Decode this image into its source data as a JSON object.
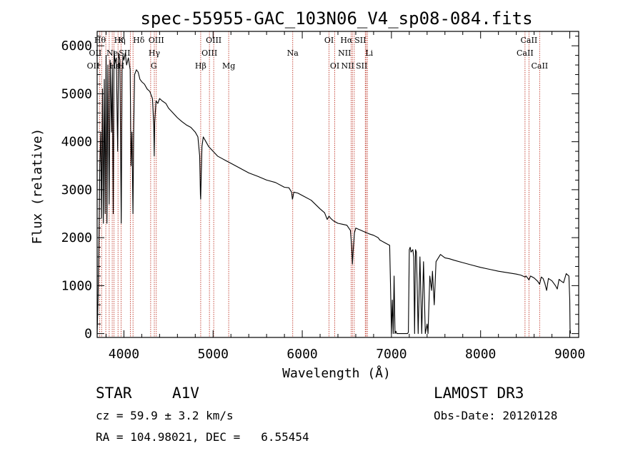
{
  "chart_data": {
    "type": "line",
    "title": "spec-55955-GAC_103N06_V4_sp08-084.fits",
    "xlabel": "Wavelength (Å)",
    "ylabel": "Flux (relative)",
    "xlim": [
      3700,
      9100
    ],
    "ylim": [
      -80,
      6300
    ],
    "x_ticks": [
      4000,
      5000,
      6000,
      7000,
      8000,
      9000
    ],
    "y_ticks": [
      0,
      1000,
      2000,
      3000,
      4000,
      5000,
      6000
    ],
    "grid": false,
    "series": [
      {
        "name": "flux",
        "x": [
          3700,
          3710,
          3720,
          3730,
          3740,
          3750,
          3760,
          3770,
          3780,
          3790,
          3800,
          3810,
          3820,
          3835,
          3845,
          3860,
          3870,
          3880,
          3889,
          3900,
          3915,
          3930,
          3940,
          3955,
          3970,
          3980,
          3990,
          4000,
          4015,
          4030,
          4050,
          4070,
          4080,
          4090,
          4101,
          4110,
          4120,
          4140,
          4160,
          4180,
          4200,
          4230,
          4260,
          4290,
          4320,
          4335,
          4340,
          4345,
          4360,
          4380,
          4400,
          4430,
          4470,
          4500,
          4550,
          4600,
          4650,
          4700,
          4750,
          4800,
          4830,
          4850,
          4858,
          4861,
          4866,
          4875,
          4890,
          4920,
          4950,
          5000,
          5050,
          5100,
          5150,
          5200,
          5300,
          5400,
          5500,
          5600,
          5700,
          5800,
          5850,
          5880,
          5890,
          5896,
          5905,
          5950,
          6000,
          6100,
          6200,
          6250,
          6280,
          6300,
          6320,
          6350,
          6400,
          6450,
          6500,
          6540,
          6555,
          6563,
          6570,
          6585,
          6600,
          6650,
          6700,
          6750,
          6800,
          6850,
          6870,
          6890,
          6920,
          6950,
          6980,
          6990,
          7000,
          7010,
          7020,
          7030,
          7040,
          7050,
          7060,
          7100,
          7150,
          7180,
          7190,
          7200,
          7210,
          7220,
          7240,
          7250,
          7260,
          7270,
          7280,
          7290,
          7300,
          7320,
          7340,
          7360,
          7380,
          7400,
          7410,
          7430,
          7450,
          7460,
          7480,
          7500,
          7550,
          7600,
          7650,
          7700,
          7800,
          7900,
          8000,
          8100,
          8200,
          8300,
          8400,
          8450,
          8498,
          8510,
          8542,
          8560,
          8600,
          8640,
          8662,
          8680,
          8700,
          8720,
          8740,
          8760,
          8800,
          8840,
          8860,
          8880,
          8900,
          8930,
          8960,
          8990,
          9000,
          9003,
          9008
        ],
        "values": [
          0,
          700,
          1900,
          3500,
          4200,
          2400,
          5100,
          2300,
          5300,
          2500,
          5800,
          2300,
          5600,
          2700,
          5700,
          4200,
          5600,
          2500,
          5900,
          5650,
          5750,
          3800,
          5850,
          5700,
          2300,
          5500,
          5800,
          5700,
          5850,
          5600,
          5750,
          5500,
          3500,
          4200,
          2500,
          4300,
          5400,
          5500,
          5450,
          5300,
          5250,
          5200,
          5100,
          5050,
          4900,
          4300,
          3700,
          4400,
          4850,
          4800,
          4900,
          4850,
          4800,
          4700,
          4600,
          4500,
          4420,
          4350,
          4300,
          4200,
          4100,
          3700,
          2900,
          2800,
          3200,
          3900,
          4100,
          4000,
          3900,
          3800,
          3700,
          3650,
          3600,
          3550,
          3450,
          3350,
          3280,
          3200,
          3150,
          3050,
          3040,
          2950,
          2800,
          2850,
          2950,
          2930,
          2880,
          2780,
          2600,
          2520,
          2380,
          2450,
          2400,
          2350,
          2300,
          2280,
          2260,
          2150,
          1800,
          1450,
          1700,
          2100,
          2200,
          2160,
          2120,
          2080,
          2050,
          2000,
          1950,
          1930,
          1900,
          1870,
          1840,
          1000,
          0,
          700,
          0,
          1200,
          0,
          50,
          0,
          0,
          0,
          0,
          30,
          1750,
          1800,
          1700,
          1750,
          1600,
          0,
          1750,
          1700,
          900,
          0,
          1600,
          0,
          1500,
          0,
          200,
          0,
          1200,
          900,
          1300,
          600,
          1500,
          1650,
          1580,
          1560,
          1530,
          1480,
          1430,
          1380,
          1340,
          1300,
          1270,
          1240,
          1220,
          1180,
          1200,
          1120,
          1200,
          1160,
          1090,
          1030,
          1180,
          1150,
          1050,
          900,
          1150,
          1100,
          1000,
          930,
          1130,
          1100,
          1060,
          1250,
          1200,
          700,
          100,
          0
        ]
      }
    ],
    "lines": [
      {
        "wave": 3727,
        "label": "OII",
        "row": 2,
        "anchor": "end"
      },
      {
        "wave": 3750,
        "label": "OII",
        "row": 1,
        "anchor": "end"
      },
      {
        "wave": 3797,
        "label": "Hθ",
        "row": 0,
        "anchor": "end"
      },
      {
        "wave": 3835,
        "label": "Hε",
        "row": 2,
        "anchor": "start"
      },
      {
        "wave": 3869,
        "label": "Ne",
        "row": 1,
        "anchor": "middle"
      },
      {
        "wave": 3889,
        "label": "Hη",
        "row": 0,
        "anchor": "start"
      },
      {
        "wave": 3934,
        "label": "K",
        "row": 0,
        "anchor": "start"
      },
      {
        "wave": 3968,
        "label": "H",
        "row": 2,
        "anchor": "middle"
      },
      {
        "wave": 4072,
        "label": "SII",
        "row": 1,
        "anchor": "end"
      },
      {
        "wave": 4102,
        "label": "Hδ",
        "row": 0,
        "anchor": "start"
      },
      {
        "wave": 4300,
        "label": "G",
        "row": 2,
        "anchor": "start"
      },
      {
        "wave": 4341,
        "label": "Hγ",
        "row": 1,
        "anchor": "middle"
      },
      {
        "wave": 4363,
        "label": "OIII",
        "row": 0,
        "anchor": "middle"
      },
      {
        "wave": 4861,
        "label": "Hβ",
        "row": 2,
        "anchor": "middle"
      },
      {
        "wave": 4959,
        "label": "OIII",
        "row": 1,
        "anchor": "middle"
      },
      {
        "wave": 5007,
        "label": "OIII",
        "row": 0,
        "anchor": "middle"
      },
      {
        "wave": 5175,
        "label": "Mg",
        "row": 2,
        "anchor": "middle"
      },
      {
        "wave": 5893,
        "label": "Na",
        "row": 1,
        "anchor": "middle"
      },
      {
        "wave": 6300,
        "label": "OI",
        "row": 0,
        "anchor": "middle"
      },
      {
        "wave": 6364,
        "label": "OI",
        "row": 2,
        "anchor": "middle"
      },
      {
        "wave": 6548,
        "label": "NII",
        "row": 1,
        "anchor": "end"
      },
      {
        "wave": 6563,
        "label": "Hα",
        "row": 0,
        "anchor": "end"
      },
      {
        "wave": 6583,
        "label": "NII",
        "row": 2,
        "anchor": "end"
      },
      {
        "wave": 6707,
        "label": "Li",
        "row": 1,
        "anchor": "start"
      },
      {
        "wave": 6716,
        "label": "SII",
        "row": 0,
        "anchor": "end"
      },
      {
        "wave": 6731,
        "label": "SII",
        "row": 2,
        "anchor": "end"
      },
      {
        "wave": 8498,
        "label": "CaII",
        "row": 1,
        "anchor": "middle"
      },
      {
        "wave": 8542,
        "label": "CaII",
        "row": 0,
        "anchor": "middle"
      },
      {
        "wave": 8662,
        "label": "CaII",
        "row": 2,
        "anchor": "middle"
      }
    ]
  },
  "info": {
    "class": "STAR",
    "subclass": "A1V",
    "survey": "LAMOST DR3",
    "cz": "cz = 59.9 ± 3.2 km/s",
    "obs_date": "Obs-Date: 20120128",
    "coords": "RA = 104.98021, DEC =   6.55454"
  },
  "colors": {
    "axis": "#000000",
    "spectrum": "#000000",
    "line_marker": "#c0392b"
  }
}
